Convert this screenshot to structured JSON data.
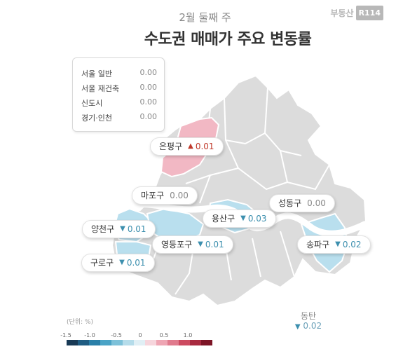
{
  "header": {
    "subtitle": "2월 둘째 주",
    "title": "수도권 매매가 주요 변동률",
    "brand_text": "부동산",
    "brand_badge": "R114"
  },
  "summary": [
    {
      "label": "서울 일반",
      "value": "0.00"
    },
    {
      "label": "서울 재건축",
      "value": "0.00"
    },
    {
      "label": "신도시",
      "value": "0.00"
    },
    {
      "label": "경기·인천",
      "value": "0.00"
    }
  ],
  "districts": {
    "eunpyeong": {
      "name": "은평구",
      "value": "0.01",
      "direction": "up"
    },
    "mapo": {
      "name": "마포구",
      "value": "0.00",
      "direction": "none"
    },
    "seongdong": {
      "name": "성동구",
      "value": "0.00",
      "direction": "none"
    },
    "yongsan": {
      "name": "용산구",
      "value": "0.03",
      "direction": "down"
    },
    "yangcheon": {
      "name": "양천구",
      "value": "0.01",
      "direction": "down"
    },
    "yeongdeungpo": {
      "name": "영등포구",
      "value": "0.01",
      "direction": "down"
    },
    "songpa": {
      "name": "송파구",
      "value": "0.02",
      "direction": "down"
    },
    "guro": {
      "name": "구로구",
      "value": "0.01",
      "direction": "down"
    }
  },
  "dongtan": {
    "name": "동탄",
    "value": "0.02",
    "direction": "down"
  },
  "legend": {
    "unit": "(단위: %)",
    "ticks": [
      "-1.5",
      "-1.0",
      "-0.5",
      "0",
      "0.5",
      "1.0"
    ],
    "colors": [
      "#183a55",
      "#1f5c82",
      "#2a7fa8",
      "#4aa3c6",
      "#7dc1d9",
      "#b5dcea",
      "#e0eff5",
      "#f6d5dc",
      "#eea5b3",
      "#e07a8d",
      "#cc4a60",
      "#a82a3f",
      "#7d1526"
    ]
  },
  "colors": {
    "map_base": "#dcdcdc",
    "decline": "#b9dfee",
    "rise": "#f2b8c4",
    "river": "#ffffff",
    "down_arrow": "#3c8fae",
    "up_arrow": "#c0392b"
  }
}
